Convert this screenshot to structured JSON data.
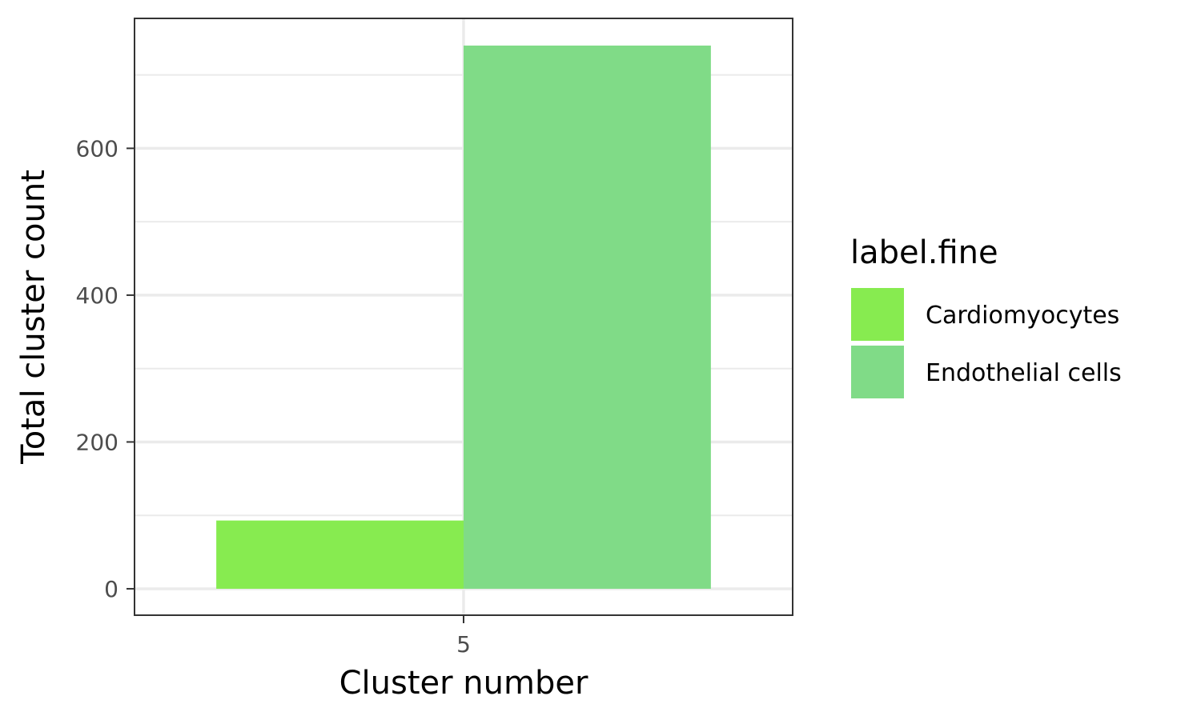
{
  "chart_data": {
    "type": "bar",
    "categories": [
      "5"
    ],
    "series": [
      {
        "name": "Cardiomyocytes",
        "values": [
          93
        ],
        "color": "#87eb50"
      },
      {
        "name": "Endothelial cells",
        "values": [
          740
        ],
        "color": "#80db87"
      }
    ],
    "xlabel": "Cluster number",
    "ylabel": "Total cluster count",
    "yticks": [
      0,
      200,
      400,
      600
    ],
    "ylim": [
      -36,
      777
    ],
    "grid": true,
    "legend": {
      "title": "label.fine",
      "position": "right"
    },
    "theme": {
      "panel_border": "#333333",
      "grid_color": "#ebebeb",
      "background": "#ffffff"
    }
  }
}
